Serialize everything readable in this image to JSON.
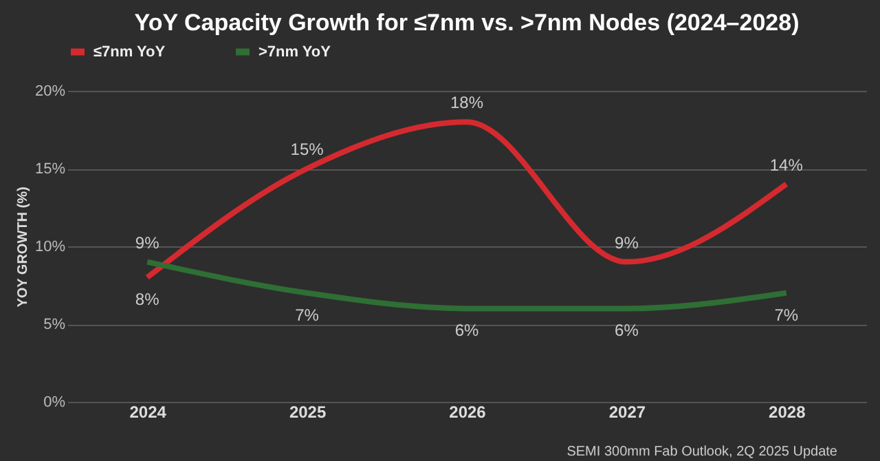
{
  "chart_data": {
    "type": "line",
    "title": "YoY Capacity Growth for ≤7nm vs. >7nm Nodes (2024–2028)",
    "ylabel": "YOY GROWTH (%)",
    "categories": [
      "2024",
      "2025",
      "2026",
      "2027",
      "2028"
    ],
    "series": [
      {
        "name": "≤7nm YoY",
        "color": "#d42a2f",
        "values": [
          8,
          15,
          18,
          9,
          14
        ],
        "value_labels": [
          "8%",
          "15%",
          "18%",
          "9%",
          "14%"
        ]
      },
      {
        "name": ">7nm YoY",
        "color": "#2f6e34",
        "values": [
          9,
          7,
          6,
          6,
          7
        ],
        "value_labels": [
          "9%",
          "7%",
          "6%",
          "6%",
          "7%"
        ]
      }
    ],
    "ylim": [
      0,
      20
    ],
    "yticks": [
      {
        "value": 0,
        "label": "0%"
      },
      {
        "value": 5,
        "label": "5%"
      },
      {
        "value": 10,
        "label": "10%"
      },
      {
        "value": 15,
        "label": "15%"
      },
      {
        "value": 20,
        "label": "20%"
      }
    ],
    "grid": "y",
    "legend": "top",
    "marker": "none",
    "line_style": "solid",
    "annotations": [
      "SEMI 300mm Fab Outlook, 2Q 2025 Update"
    ]
  }
}
